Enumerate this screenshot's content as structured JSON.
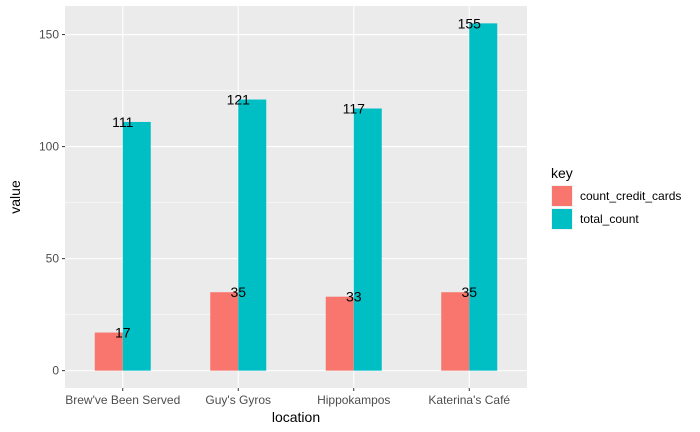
{
  "chart_data": {
    "type": "bar",
    "categories": [
      "Brew've Been Served",
      "Guy's Gyros",
      "Hippokampos",
      "Katerina's Café"
    ],
    "series": [
      {
        "name": "count_credit_cards",
        "values": [
          17,
          35,
          33,
          35
        ],
        "color": "#F8766D"
      },
      {
        "name": "total_count",
        "values": [
          111,
          121,
          117,
          155
        ],
        "color": "#00BFC4"
      }
    ],
    "xlabel": "location",
    "ylabel": "value",
    "ylim": [
      -7.75,
      162.75
    ],
    "yticks": [
      0,
      50,
      100,
      150
    ],
    "legend": {
      "title": "key",
      "position": "right"
    },
    "grid": true,
    "panel_background": "#EBEBEB",
    "gridline_color": "#FFFFFF"
  }
}
